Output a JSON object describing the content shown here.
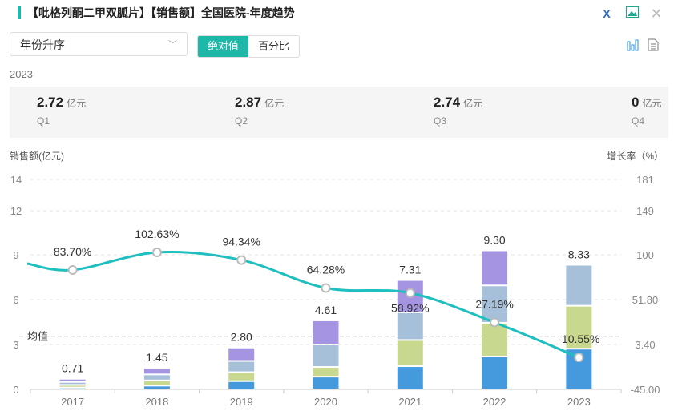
{
  "header": {
    "title": "【吡格列酮二甲双胍片】【销售额】全国医院-年度趋势",
    "excel_icon": "excel-export-icon",
    "image_icon": "image-export-icon",
    "close_icon": "close-icon"
  },
  "controls": {
    "sort_value": "年份升序",
    "abs_label": "绝对值",
    "pct_label": "百分比",
    "chart_icon": "bar-chart-icon",
    "doc_icon": "document-icon"
  },
  "summary": {
    "year": "2023",
    "unit": "亿元",
    "quarters": [
      {
        "label": "Q1",
        "value": "2.72"
      },
      {
        "label": "Q2",
        "value": "2.87"
      },
      {
        "label": "Q3",
        "value": "2.74"
      },
      {
        "label": "Q4",
        "value": "0"
      }
    ]
  },
  "colors": {
    "q1": "#4599dd",
    "q2": "#c9d88f",
    "q3": "#a7c0d9",
    "q4": "#a594e2",
    "line": "#1fbfbf",
    "accent": "#1fb8a8"
  },
  "chart_data": {
    "type": "bar+line",
    "ylabel": "销售额(亿元)",
    "y2label": "增长率（%）",
    "yticks": [
      "0",
      "3",
      "6",
      "9",
      "12",
      "14"
    ],
    "ytick_values": [
      0,
      3,
      6,
      9,
      12,
      14
    ],
    "y2ticks": [
      "-45.00",
      "3.40",
      "51.80",
      "100",
      "149",
      "181"
    ],
    "y2tick_values": [
      -45,
      3.4,
      51.8,
      100,
      149,
      181
    ],
    "categories": [
      "2017",
      "2018",
      "2019",
      "2020",
      "2021",
      "2022",
      "2023"
    ],
    "series": [
      {
        "name": "Q1",
        "values": [
          0.12,
          0.25,
          0.55,
          0.85,
          1.55,
          2.2,
          2.72
        ]
      },
      {
        "name": "Q2",
        "values": [
          0.18,
          0.35,
          0.6,
          0.65,
          1.75,
          2.25,
          2.87
        ]
      },
      {
        "name": "Q3",
        "values": [
          0.2,
          0.4,
          0.75,
          1.5,
          1.85,
          2.5,
          2.74
        ]
      },
      {
        "name": "Q4",
        "values": [
          0.21,
          0.45,
          0.9,
          1.61,
          2.16,
          2.35,
          0
        ]
      }
    ],
    "totals": [
      "0.71",
      "1.45",
      "2.80",
      "4.61",
      "7.31",
      "9.30",
      "8.33"
    ],
    "growth": [
      83.7,
      102.63,
      94.34,
      64.28,
      58.92,
      27.19,
      -10.55
    ],
    "growth_labels": [
      "83.70%",
      "102.63%",
      "94.34%",
      "64.28%",
      "58.92%",
      "27.19%",
      "-10.55%"
    ],
    "avg_label": "均值",
    "avg_value": 3.55
  }
}
